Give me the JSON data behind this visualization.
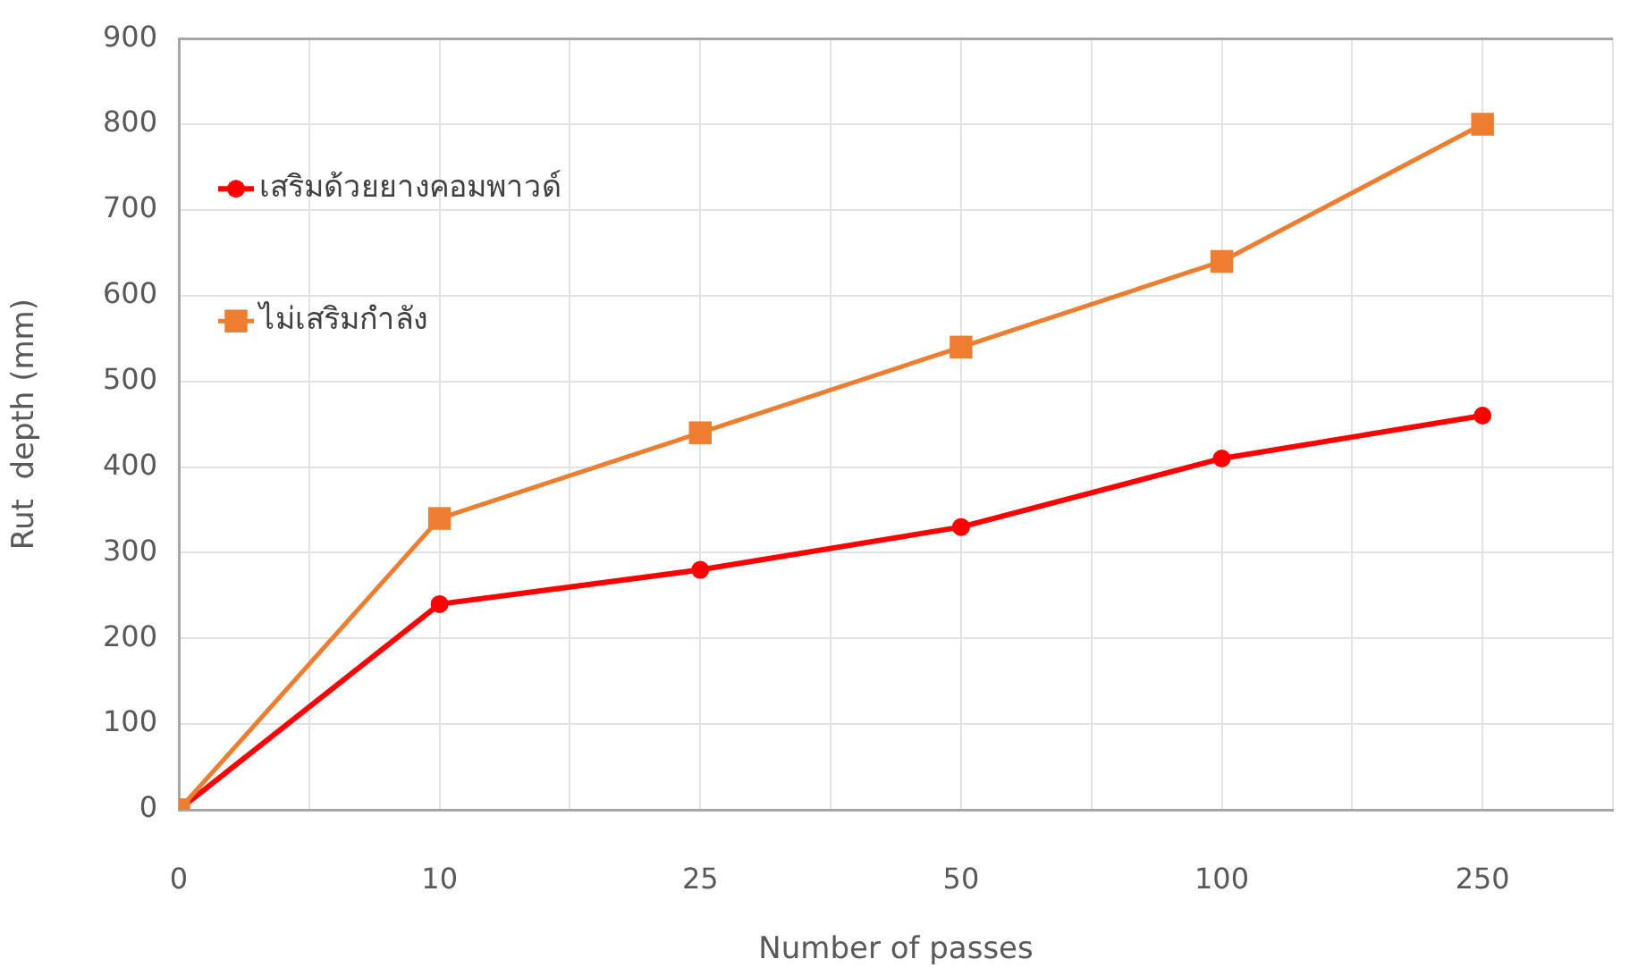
{
  "chart_data": {
    "type": "line",
    "xlabel": "Number of passes",
    "ylabel": "Rut  depth (mm)",
    "categories": [
      "0",
      "10",
      "25",
      "50",
      "100",
      "250"
    ],
    "series": [
      {
        "name": "เสริมด้วยยางคอมพาวด์",
        "color": "#ff0000",
        "marker": "circle",
        "values": [
          0,
          240,
          280,
          330,
          410,
          460
        ]
      },
      {
        "name": "ไม่เสริมกำลัง",
        "color": "#ed7d31",
        "marker": "square",
        "values": [
          0,
          340,
          440,
          540,
          640,
          800
        ]
      }
    ],
    "ylim": [
      0,
      900
    ],
    "yticks": [
      0,
      100,
      200,
      300,
      400,
      500,
      600,
      700,
      800,
      900
    ],
    "grid": true,
    "legend": "top left",
    "line_style": "solid"
  }
}
